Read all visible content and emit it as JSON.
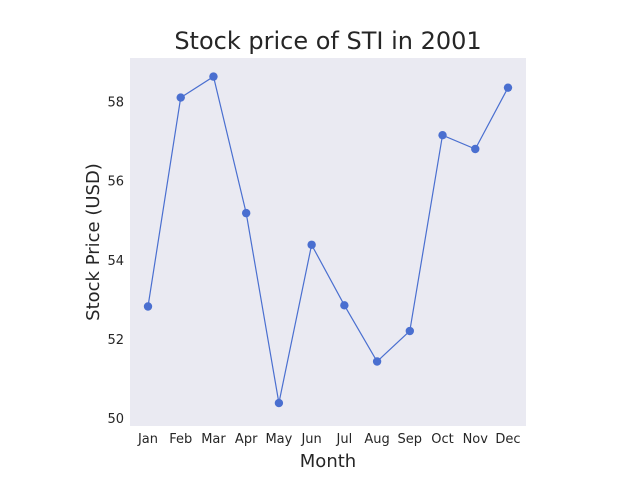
{
  "chart_data": {
    "type": "line",
    "title": "Stock price of STI in 2001",
    "xlabel": "Month",
    "ylabel": "Stock Price (USD)",
    "categories": [
      "Jan",
      "Feb",
      "Mar",
      "Apr",
      "May",
      "Jun",
      "Jul",
      "Aug",
      "Sep",
      "Oct",
      "Nov",
      "Dec"
    ],
    "series": [
      {
        "values": [
          52.82,
          58.1,
          58.63,
          55.18,
          50.38,
          54.38,
          52.85,
          51.43,
          52.2,
          57.15,
          56.8,
          58.35
        ]
      }
    ],
    "ylim": [
      49.8,
      59.1
    ],
    "yticks": [
      50,
      52,
      54,
      56,
      58
    ],
    "grid": false,
    "background_color": "#eaeaf2",
    "line_color": "#4a6fd0",
    "marker_color": "#4a6fd0"
  }
}
